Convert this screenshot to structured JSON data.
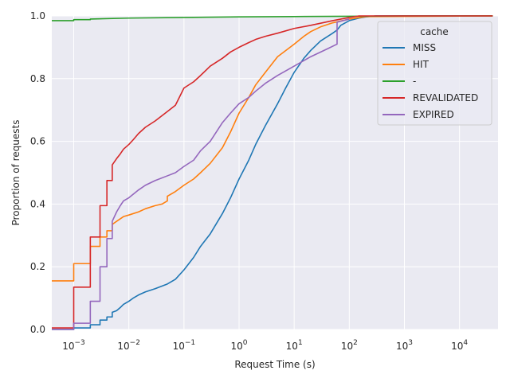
{
  "chart_data": {
    "type": "line",
    "subtype": "ecdf",
    "xlabel": "Request Time (s)",
    "ylabel": "Proportion of requests",
    "xscale": "log",
    "xlim": [
      0.0004,
      50000
    ],
    "ylim": [
      0.0,
      1.0
    ],
    "x_ticks": [
      {
        "value": 0.001,
        "base": "10",
        "exp": "−3"
      },
      {
        "value": 0.01,
        "base": "10",
        "exp": "−2"
      },
      {
        "value": 0.1,
        "base": "10",
        "exp": "−1"
      },
      {
        "value": 1,
        "base": "10",
        "exp": "0"
      },
      {
        "value": 10,
        "base": "10",
        "exp": "1"
      },
      {
        "value": 100,
        "base": "10",
        "exp": "2"
      },
      {
        "value": 1000,
        "base": "10",
        "exp": "3"
      },
      {
        "value": 10000,
        "base": "10",
        "exp": "4"
      }
    ],
    "y_ticks": [
      {
        "value": 0.0,
        "label": "0.0"
      },
      {
        "value": 0.2,
        "label": "0.2"
      },
      {
        "value": 0.4,
        "label": "0.4"
      },
      {
        "value": 0.6,
        "label": "0.6"
      },
      {
        "value": 0.8,
        "label": "0.8"
      },
      {
        "value": 1.0,
        "label": "1.0"
      }
    ],
    "grid": true,
    "background": "#eaeaf2",
    "legend": {
      "title": "cache",
      "placement": "top-right"
    },
    "series": [
      {
        "name": "MISS",
        "color": "#1f77b4",
        "points": [
          [
            0.0004,
            0.0
          ],
          [
            0.001,
            0.0
          ],
          [
            0.001,
            0.005
          ],
          [
            0.002,
            0.005
          ],
          [
            0.002,
            0.015
          ],
          [
            0.003,
            0.015
          ],
          [
            0.003,
            0.03
          ],
          [
            0.004,
            0.03
          ],
          [
            0.004,
            0.04
          ],
          [
            0.005,
            0.04
          ],
          [
            0.005,
            0.055
          ],
          [
            0.006,
            0.06
          ],
          [
            0.007,
            0.07
          ],
          [
            0.008,
            0.08
          ],
          [
            0.01,
            0.09
          ],
          [
            0.012,
            0.1
          ],
          [
            0.015,
            0.11
          ],
          [
            0.02,
            0.12
          ],
          [
            0.03,
            0.13
          ],
          [
            0.05,
            0.145
          ],
          [
            0.07,
            0.16
          ],
          [
            0.1,
            0.19
          ],
          [
            0.15,
            0.23
          ],
          [
            0.2,
            0.265
          ],
          [
            0.3,
            0.305
          ],
          [
            0.5,
            0.37
          ],
          [
            0.7,
            0.42
          ],
          [
            1.0,
            0.48
          ],
          [
            1.5,
            0.54
          ],
          [
            2.0,
            0.59
          ],
          [
            3.0,
            0.65
          ],
          [
            5.0,
            0.72
          ],
          [
            7.0,
            0.77
          ],
          [
            10.0,
            0.82
          ],
          [
            15.0,
            0.865
          ],
          [
            20.0,
            0.89
          ],
          [
            30.0,
            0.92
          ],
          [
            50.0,
            0.945
          ],
          [
            60.0,
            0.955
          ],
          [
            70.0,
            0.97
          ],
          [
            100.0,
            0.985
          ],
          [
            150.0,
            0.993
          ],
          [
            200.0,
            0.997
          ],
          [
            300.0,
            1.0
          ],
          [
            40000.0,
            1.0
          ]
        ]
      },
      {
        "name": "HIT",
        "color": "#ff7f0e",
        "points": [
          [
            0.0004,
            0.155
          ],
          [
            0.001,
            0.155
          ],
          [
            0.001,
            0.21
          ],
          [
            0.002,
            0.21
          ],
          [
            0.002,
            0.265
          ],
          [
            0.003,
            0.265
          ],
          [
            0.003,
            0.295
          ],
          [
            0.004,
            0.295
          ],
          [
            0.004,
            0.315
          ],
          [
            0.005,
            0.315
          ],
          [
            0.005,
            0.335
          ],
          [
            0.006,
            0.345
          ],
          [
            0.008,
            0.36
          ],
          [
            0.01,
            0.365
          ],
          [
            0.015,
            0.375
          ],
          [
            0.02,
            0.385
          ],
          [
            0.03,
            0.395
          ],
          [
            0.04,
            0.4
          ],
          [
            0.05,
            0.41
          ],
          [
            0.05,
            0.425
          ],
          [
            0.07,
            0.44
          ],
          [
            0.1,
            0.46
          ],
          [
            0.15,
            0.48
          ],
          [
            0.2,
            0.5
          ],
          [
            0.3,
            0.53
          ],
          [
            0.5,
            0.58
          ],
          [
            0.7,
            0.63
          ],
          [
            1.0,
            0.69
          ],
          [
            1.5,
            0.74
          ],
          [
            2.0,
            0.78
          ],
          [
            3.0,
            0.82
          ],
          [
            5.0,
            0.87
          ],
          [
            10.0,
            0.91
          ],
          [
            15.0,
            0.935
          ],
          [
            20.0,
            0.95
          ],
          [
            30.0,
            0.965
          ],
          [
            50.0,
            0.978
          ],
          [
            100.0,
            0.99
          ],
          [
            200.0,
            0.998
          ],
          [
            40000.0,
            1.0
          ]
        ]
      },
      {
        "name": "-",
        "color": "#2ca02c",
        "points": [
          [
            0.0004,
            0.985
          ],
          [
            0.001,
            0.985
          ],
          [
            0.001,
            0.988
          ],
          [
            0.002,
            0.988
          ],
          [
            0.002,
            0.99
          ],
          [
            0.01,
            0.993
          ],
          [
            0.1,
            0.995
          ],
          [
            1.0,
            0.997
          ],
          [
            10.0,
            0.998
          ],
          [
            100.0,
            0.999
          ],
          [
            1000.0,
            1.0
          ],
          [
            40000.0,
            1.0
          ]
        ]
      },
      {
        "name": "REVALIDATED",
        "color": "#d62728",
        "points": [
          [
            0.0004,
            0.005
          ],
          [
            0.001,
            0.005
          ],
          [
            0.001,
            0.135
          ],
          [
            0.002,
            0.135
          ],
          [
            0.002,
            0.295
          ],
          [
            0.003,
            0.295
          ],
          [
            0.003,
            0.395
          ],
          [
            0.004,
            0.395
          ],
          [
            0.004,
            0.475
          ],
          [
            0.005,
            0.475
          ],
          [
            0.005,
            0.525
          ],
          [
            0.006,
            0.545
          ],
          [
            0.007,
            0.56
          ],
          [
            0.008,
            0.575
          ],
          [
            0.01,
            0.59
          ],
          [
            0.012,
            0.605
          ],
          [
            0.015,
            0.625
          ],
          [
            0.02,
            0.645
          ],
          [
            0.03,
            0.665
          ],
          [
            0.05,
            0.695
          ],
          [
            0.07,
            0.715
          ],
          [
            0.1,
            0.77
          ],
          [
            0.15,
            0.79
          ],
          [
            0.2,
            0.81
          ],
          [
            0.3,
            0.84
          ],
          [
            0.5,
            0.865
          ],
          [
            0.7,
            0.885
          ],
          [
            1.0,
            0.9
          ],
          [
            1.5,
            0.915
          ],
          [
            2.0,
            0.925
          ],
          [
            3.0,
            0.935
          ],
          [
            5.0,
            0.945
          ],
          [
            10.0,
            0.96
          ],
          [
            20.0,
            0.97
          ],
          [
            50.0,
            0.985
          ],
          [
            100.0,
            0.995
          ],
          [
            150.0,
            1.0
          ],
          [
            40000.0,
            1.0
          ]
        ]
      },
      {
        "name": "EXPIRED",
        "color": "#9467bd",
        "points": [
          [
            0.0004,
            0.0
          ],
          [
            0.001,
            0.0
          ],
          [
            0.001,
            0.02
          ],
          [
            0.002,
            0.02
          ],
          [
            0.002,
            0.09
          ],
          [
            0.003,
            0.09
          ],
          [
            0.003,
            0.2
          ],
          [
            0.004,
            0.2
          ],
          [
            0.004,
            0.29
          ],
          [
            0.005,
            0.29
          ],
          [
            0.005,
            0.345
          ],
          [
            0.006,
            0.375
          ],
          [
            0.007,
            0.395
          ],
          [
            0.008,
            0.41
          ],
          [
            0.01,
            0.42
          ],
          [
            0.015,
            0.445
          ],
          [
            0.02,
            0.46
          ],
          [
            0.03,
            0.475
          ],
          [
            0.05,
            0.49
          ],
          [
            0.07,
            0.5
          ],
          [
            0.1,
            0.52
          ],
          [
            0.15,
            0.54
          ],
          [
            0.2,
            0.57
          ],
          [
            0.3,
            0.6
          ],
          [
            0.5,
            0.66
          ],
          [
            0.7,
            0.69
          ],
          [
            1.0,
            0.72
          ],
          [
            1.5,
            0.74
          ],
          [
            2.0,
            0.76
          ],
          [
            3.0,
            0.785
          ],
          [
            5.0,
            0.81
          ],
          [
            10.0,
            0.84
          ],
          [
            20.0,
            0.87
          ],
          [
            40.0,
            0.895
          ],
          [
            60.0,
            0.91
          ],
          [
            60.0,
            0.98
          ],
          [
            100.0,
            0.99
          ]
        ]
      }
    ]
  }
}
